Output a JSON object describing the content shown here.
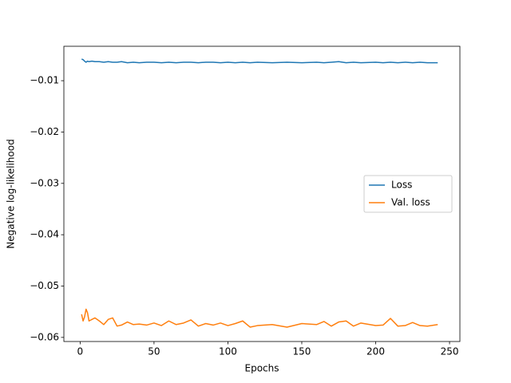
{
  "chart_data": {
    "type": "line",
    "x_label": "Epochs",
    "y_label": "Negative log-likelihood",
    "x": [
      1,
      2,
      3,
      4,
      5,
      6,
      8,
      10,
      13,
      16,
      19,
      22,
      25,
      28,
      32,
      36,
      40,
      45,
      50,
      55,
      60,
      65,
      70,
      75,
      80,
      85,
      90,
      95,
      100,
      105,
      110,
      115,
      120,
      130,
      140,
      150,
      160,
      165,
      170,
      175,
      180,
      185,
      190,
      200,
      205,
      210,
      215,
      220,
      225,
      230,
      235,
      242
    ],
    "series": [
      {
        "name": "Loss",
        "color": "#1f77b4",
        "values": [
          -0.0058,
          -0.0059,
          -0.0062,
          -0.0064,
          -0.0062,
          -0.0063,
          -0.0062,
          -0.0063,
          -0.0063,
          -0.0064,
          -0.0063,
          -0.0064,
          -0.0064,
          -0.0063,
          -0.0065,
          -0.0064,
          -0.0065,
          -0.0064,
          -0.0064,
          -0.0065,
          -0.0064,
          -0.0065,
          -0.0064,
          -0.0064,
          -0.0065,
          -0.0064,
          -0.0064,
          -0.0065,
          -0.0064,
          -0.0065,
          -0.0064,
          -0.0065,
          -0.0064,
          -0.0065,
          -0.0064,
          -0.0065,
          -0.0064,
          -0.0065,
          -0.0064,
          -0.0063,
          -0.0065,
          -0.0064,
          -0.0065,
          -0.0064,
          -0.0065,
          -0.0064,
          -0.0065,
          -0.0064,
          -0.0065,
          -0.0064,
          -0.0065,
          -0.0065
        ]
      },
      {
        "name": "Val. loss",
        "color": "#ff7f0e",
        "values": [
          -0.0555,
          -0.0568,
          -0.056,
          -0.0545,
          -0.0552,
          -0.0568,
          -0.0565,
          -0.0562,
          -0.0568,
          -0.0575,
          -0.0565,
          -0.0562,
          -0.0578,
          -0.0576,
          -0.057,
          -0.0575,
          -0.0574,
          -0.0576,
          -0.0572,
          -0.0577,
          -0.0568,
          -0.0575,
          -0.0572,
          -0.0566,
          -0.0578,
          -0.0573,
          -0.0576,
          -0.0572,
          -0.0577,
          -0.0573,
          -0.0568,
          -0.058,
          -0.0577,
          -0.0575,
          -0.058,
          -0.0573,
          -0.0575,
          -0.0569,
          -0.0578,
          -0.057,
          -0.0568,
          -0.0578,
          -0.0572,
          -0.0577,
          -0.0576,
          -0.0563,
          -0.0578,
          -0.0577,
          -0.0571,
          -0.0577,
          -0.0578,
          -0.0575
        ]
      }
    ],
    "xlim": [
      -11,
      257
    ],
    "xticks": [
      0,
      50,
      100,
      150,
      200,
      250
    ],
    "ylim": [
      -0.0608,
      -0.0033
    ],
    "yticks": [
      {
        "value": -0.06,
        "label": "−0.06"
      },
      {
        "value": -0.05,
        "label": "−0.05"
      },
      {
        "value": -0.04,
        "label": "−0.04"
      },
      {
        "value": -0.03,
        "label": "−0.03"
      },
      {
        "value": -0.02,
        "label": "−0.02"
      },
      {
        "value": -0.01,
        "label": "−0.01"
      }
    ],
    "grid": false,
    "legend": "center right"
  }
}
